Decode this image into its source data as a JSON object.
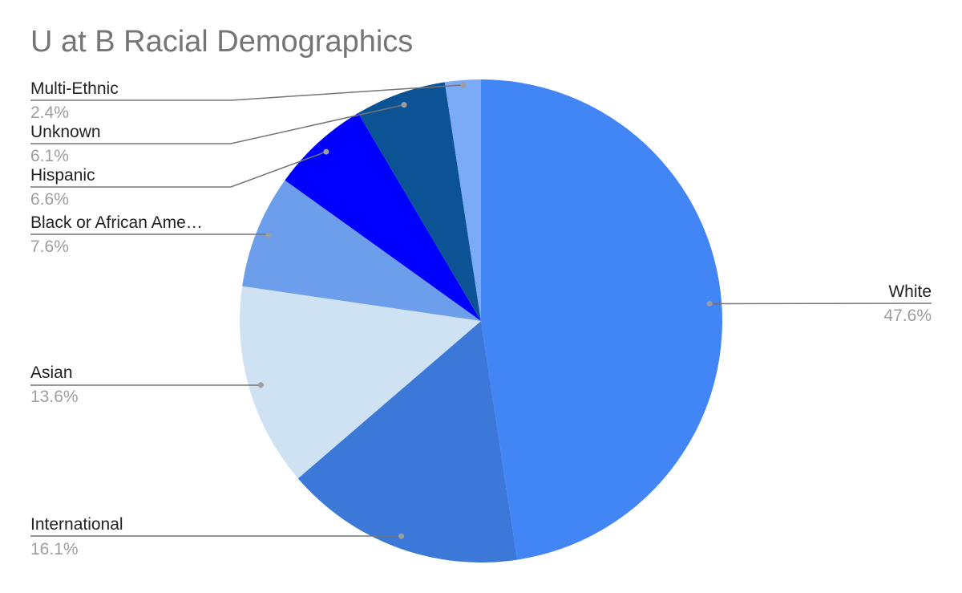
{
  "chart_data": {
    "type": "pie",
    "title": "U at B Racial Demographics",
    "slices": [
      {
        "label": "White",
        "value": 47.6,
        "value_label": "47.6%",
        "color": "#4285f4"
      },
      {
        "label": "International",
        "value": 16.1,
        "value_label": "16.1%",
        "color": "#3c78d8"
      },
      {
        "label": "Asian",
        "value": 13.6,
        "value_label": "13.6%",
        "color": "#cfe2f3"
      },
      {
        "label": "Black or African Ame…",
        "value": 7.6,
        "value_label": "7.6%",
        "color": "#6d9eeb"
      },
      {
        "label": "Hispanic",
        "value": 6.6,
        "value_label": "6.6%",
        "color": "#0000ff"
      },
      {
        "label": "Unknown",
        "value": 6.1,
        "value_label": "6.1%",
        "color": "#0b5394"
      },
      {
        "label": "Multi-Ethnic",
        "value": 2.4,
        "value_label": "2.4%",
        "color": "#7baaf7"
      }
    ]
  }
}
